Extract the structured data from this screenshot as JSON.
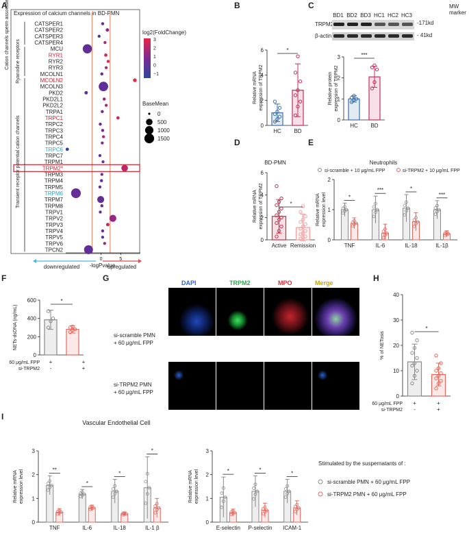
{
  "colors": {
    "hc": "#3b6faa",
    "bd": "#c72c5c",
    "grey": "#8a8a8a",
    "red": "#e5685f",
    "vline": "#e69070",
    "down": "#47b9d6",
    "up": "#e24a4a",
    "dapi": "#2f62c9",
    "trpm2": "#2fa84f",
    "mpo": "#d0333a",
    "merge": "#c7a300",
    "red_label": "#cf2230",
    "cyan_label": "#2aa3c9"
  },
  "panel_letters": [
    "A",
    "B",
    "C",
    "D",
    "E",
    "F",
    "G",
    "H",
    "I"
  ],
  "panelA": {
    "title": "Expression of calcium channels in BD-PMN",
    "xlabel": "-logPvalue",
    "xticks": [
      0,
      5
    ],
    "vlines": [
      -2.3,
      2.3
    ],
    "xlim": [
      -9,
      10
    ],
    "color_legend_title": "log2(FoldChange)",
    "color_ticks": [
      "3",
      "2",
      "1",
      "0",
      "−1"
    ],
    "size_legend_title": "BaseMean",
    "size_legend": [
      "0",
      "500",
      "1000",
      "1500"
    ],
    "groups": [
      "Cation channels sperm associated",
      "Ryanodine receptors",
      "Transient receptor potential cation channels"
    ],
    "down_label": "downregulated",
    "up_label": "upregulated",
    "genes": [
      {
        "n": "CATSPER1",
        "x": 0.4,
        "fc": 0.5,
        "bm": 20,
        "lc": "k"
      },
      {
        "n": "CATSPER2",
        "x": 1.6,
        "fc": 1.3,
        "bm": 40,
        "lc": "k"
      },
      {
        "n": "CATSPER3",
        "x": -0.5,
        "fc": -1.1,
        "bm": 15,
        "lc": "k"
      },
      {
        "n": "CATSPER4",
        "x": 1.0,
        "fc": 1.6,
        "bm": 15,
        "lc": "k"
      },
      {
        "n": "MCU",
        "x": -3.5,
        "fc": 0.1,
        "bm": 1300,
        "lc": "k"
      },
      {
        "n": "RYR1",
        "x": 1.2,
        "fc": 2.5,
        "bm": 30,
        "lc": "r"
      },
      {
        "n": "RYR2",
        "x": 1.8,
        "fc": 2.8,
        "bm": 20,
        "lc": "k"
      },
      {
        "n": "RYR3",
        "x": 1.3,
        "fc": 1.6,
        "bm": 15,
        "lc": "k"
      },
      {
        "n": "MCOLN1",
        "x": 0.2,
        "fc": 0.4,
        "bm": 20,
        "lc": "k"
      },
      {
        "n": "MCOLN2",
        "x": 8.6,
        "fc": 3.0,
        "bm": 60,
        "lc": "r"
      },
      {
        "n": "MCOLN3",
        "x": 0.6,
        "fc": 0.0,
        "bm": 1400,
        "lc": "k"
      },
      {
        "n": "PKD2",
        "x": -3.8,
        "fc": -0.1,
        "bm": 40,
        "lc": "k"
      },
      {
        "n": "PKD2L1",
        "x": 0.8,
        "fc": 1.5,
        "bm": 20,
        "lc": "k"
      },
      {
        "n": "PKD2L2",
        "x": 1.3,
        "fc": 1.8,
        "bm": 15,
        "lc": "k"
      },
      {
        "n": "TRPA1",
        "x": 0.3,
        "fc": 0.9,
        "bm": 20,
        "lc": "k"
      },
      {
        "n": "TRPC1",
        "x": 4.3,
        "fc": 2.5,
        "bm": 30,
        "lc": "r"
      },
      {
        "n": "TRPC2",
        "x": -0.2,
        "fc": 0.2,
        "bm": 20,
        "lc": "k"
      },
      {
        "n": "TRPC3",
        "x": 0.4,
        "fc": 0.8,
        "bm": 20,
        "lc": "k"
      },
      {
        "n": "TRPC4",
        "x": 0.6,
        "fc": 1.6,
        "bm": 15,
        "lc": "k"
      },
      {
        "n": "TRPC5",
        "x": 0.3,
        "fc": 0.7,
        "bm": 15,
        "lc": "k"
      },
      {
        "n": "TRPC6",
        "x": -8.6,
        "fc": -1.5,
        "bm": 30,
        "lc": "b"
      },
      {
        "n": "TRPC7",
        "x": -0.3,
        "fc": -0.2,
        "bm": 15,
        "lc": "k"
      },
      {
        "n": "TRPM1",
        "x": 0.5,
        "fc": 0.8,
        "bm": 15,
        "lc": "k"
      },
      {
        "n": "TRPM2*",
        "x": 6.0,
        "fc": 2.1,
        "bm": 500,
        "lc": "r"
      },
      {
        "n": "TRPM3",
        "x": 0.2,
        "fc": 0.6,
        "bm": 15,
        "lc": "k"
      },
      {
        "n": "TRPM4",
        "x": 0.1,
        "fc": 0.4,
        "bm": 20,
        "lc": "k"
      },
      {
        "n": "TRPM5",
        "x": -0.3,
        "fc": 0.1,
        "bm": 15,
        "lc": "k"
      },
      {
        "n": "TRPM6",
        "x": -6.4,
        "fc": 0.2,
        "bm": 1500,
        "lc": "b"
      },
      {
        "n": "TRPM7",
        "x": -0.1,
        "fc": 0.1,
        "bm": 600,
        "lc": "k"
      },
      {
        "n": "TRPM8",
        "x": 0.2,
        "fc": 0.5,
        "bm": 20,
        "lc": "k"
      },
      {
        "n": "TRPV1",
        "x": -0.2,
        "fc": 0.0,
        "bm": 15,
        "lc": "k"
      },
      {
        "n": "TRPV2",
        "x": 3.0,
        "fc": 1.4,
        "bm": 600,
        "lc": "k"
      },
      {
        "n": "TRPV3",
        "x": 1.7,
        "fc": 2.4,
        "bm": 40,
        "lc": "k"
      },
      {
        "n": "TRPV4",
        "x": 0.4,
        "fc": 0.8,
        "bm": 20,
        "lc": "k"
      },
      {
        "n": "TRPV5",
        "x": 0.4,
        "fc": 0.2,
        "bm": 15,
        "lc": "k"
      },
      {
        "n": "TRPV6",
        "x": 0.9,
        "fc": 1.3,
        "bm": 15,
        "lc": "k"
      },
      {
        "n": "TPCN2",
        "x": -3.2,
        "fc": 0.1,
        "bm": 1200,
        "lc": "k"
      }
    ]
  },
  "panelB": {
    "ylabel": "Relative mRNA\nexpression of TRPM2",
    "ylim": [
      0,
      6
    ],
    "yticks": [
      0,
      2,
      4,
      6
    ],
    "categories": [
      "HC",
      "BD"
    ],
    "means": [
      1.0,
      2.8
    ],
    "sd": [
      0.7,
      2.1
    ],
    "sig": "*",
    "points": [
      [
        0.3,
        0.5,
        0.7,
        0.9,
        1.1,
        1.4,
        1.9
      ],
      [
        0.8,
        1.5,
        1.9,
        2.4,
        2.8,
        3.5,
        4.2,
        5.5
      ]
    ]
  },
  "panelC": {
    "blot_lanes": [
      "BD1",
      "BD2",
      "BD3",
      "HC1",
      "HC2",
      "HC3"
    ],
    "mw_label": "MW\nmarker",
    "rows": [
      "TRPM2",
      "β-actin"
    ],
    "mw": [
      "-171kd",
      "- 41kd"
    ],
    "ylabel": "Relative protein\nexpression of TRPM2",
    "ylim": [
      0,
      3
    ],
    "yticks": [
      0,
      1,
      2,
      3
    ],
    "categories": [
      "HC",
      "BD"
    ],
    "means": [
      1.0,
      2.05
    ],
    "sd": [
      0.15,
      0.5
    ],
    "sig": "***",
    "points": [
      [
        0.85,
        0.95,
        1.0,
        1.05,
        1.15
      ],
      [
        1.5,
        1.8,
        2.4,
        2.5,
        2.6
      ]
    ]
  },
  "panelD": {
    "title": "BD-PMN",
    "ylabel": "Relative mRNA\nexpression of TRPM2",
    "ylim": [
      0,
      6
    ],
    "yticks": [
      0,
      2,
      4,
      6
    ],
    "categories": [
      "Active",
      "Remission"
    ],
    "means": [
      2.1,
      1.1
    ],
    "sd": [
      1.5,
      1.2
    ],
    "sig": "*",
    "points": [
      [
        0.3,
        0.8,
        1.2,
        1.5,
        1.8,
        2.0,
        2.2,
        2.5,
        2.8,
        3.1,
        3.4,
        3.7,
        4.8
      ],
      [
        0.1,
        0.2,
        0.3,
        0.5,
        0.6,
        0.8,
        1.0,
        1.2,
        1.4,
        1.6,
        1.8,
        2.1,
        2.5,
        3.0
      ]
    ]
  },
  "panelE": {
    "title": "Neutrophils",
    "legend": [
      "si-scramble + 10 μg/mL FPP",
      "si-TRPM2 + 10 μg/mL FPP"
    ],
    "ylabel": "Relative mRNA\nexpression level",
    "ylim": [
      0,
      2
    ],
    "yticks": [
      0,
      1,
      2
    ],
    "categories": [
      "TNF",
      "IL-6",
      "IL-18",
      "IL-1β"
    ],
    "series": [
      {
        "means": [
          1.0,
          1.0,
          1.05,
          1.0
        ],
        "sd": [
          0.22,
          0.45,
          0.45,
          0.3
        ]
      },
      {
        "means": [
          0.55,
          0.22,
          0.6,
          0.2
        ],
        "sd": [
          0.18,
          0.3,
          0.3,
          0.1
        ]
      }
    ],
    "sig": [
      "*",
      "***",
      "*",
      "***"
    ]
  },
  "panelF": {
    "ylabel": "NETs-dsDNA (ng/mL)",
    "ylim": [
      0,
      600
    ],
    "yticks": [
      0,
      200,
      400,
      600
    ],
    "means": [
      385,
      280
    ],
    "sd": [
      105,
      40
    ],
    "sig": "*",
    "row_labels": [
      "60 μg/mL FPP",
      "si-TRPM2"
    ],
    "signs": [
      [
        "+",
        "-"
      ],
      [
        "+",
        "+"
      ]
    ]
  },
  "panelG": {
    "channels": [
      "DAPI",
      "TRPM2",
      "MPO",
      "Merge"
    ],
    "rows": [
      "si-scramble PMN\n+ 60 μg/mL FPP",
      "si-TRPM2 PMN\n+ 60 μg/mL FPP"
    ]
  },
  "panelH": {
    "ylabel": "% of NETosis",
    "ylim": [
      0,
      40
    ],
    "yticks": [
      0,
      10,
      20,
      30,
      40
    ],
    "means": [
      13.5,
      8.5
    ],
    "sd": [
      7,
      4.5
    ],
    "sig": "*",
    "row_labels": [
      "60 μg/mL FPP",
      "si-TRPM2"
    ],
    "signs": [
      [
        "+",
        "-"
      ],
      [
        "+",
        "+"
      ]
    ]
  },
  "panelI": {
    "title": "Vascular Endothelial Cell",
    "ylabel": "Relative mRNA\nexpression level",
    "chart1": {
      "ylim": [
        0,
        3
      ],
      "yticks": [
        0,
        1,
        2,
        3
      ],
      "categories": [
        "TNF",
        "IL-6",
        "IL-18",
        "IL-1 β"
      ],
      "series": [
        {
          "means": [
            1.55,
            1.18,
            1.3,
            1.45
          ],
          "sd": [
            0.4,
            0.2,
            0.5,
            1.3
          ]
        },
        {
          "means": [
            0.42,
            0.6,
            0.35,
            0.6
          ],
          "sd": [
            0.15,
            0.12,
            0.08,
            0.4
          ]
        }
      ],
      "sig": [
        "**",
        "*",
        "*",
        "*"
      ]
    },
    "chart2": {
      "ylim": [
        0,
        3
      ],
      "yticks": [
        0,
        1,
        2,
        3
      ],
      "categories": [
        "E-selectin",
        "P-selectin",
        "ICAM-1"
      ],
      "series": [
        {
          "means": [
            1.05,
            1.3,
            1.3
          ],
          "sd": [
            0.85,
            0.65,
            0.5
          ]
        },
        {
          "means": [
            0.4,
            0.5,
            0.6
          ],
          "sd": [
            0.15,
            0.3,
            0.3
          ]
        }
      ],
      "sig": [
        "*",
        "*",
        "*"
      ]
    },
    "legend_title": "Stimulated by the suspernatants of :",
    "legend": [
      "si-scramble PMN + 60 μg/mL FPP",
      "si-TRPM2 PMN + 60 μg/mL FPP"
    ]
  }
}
